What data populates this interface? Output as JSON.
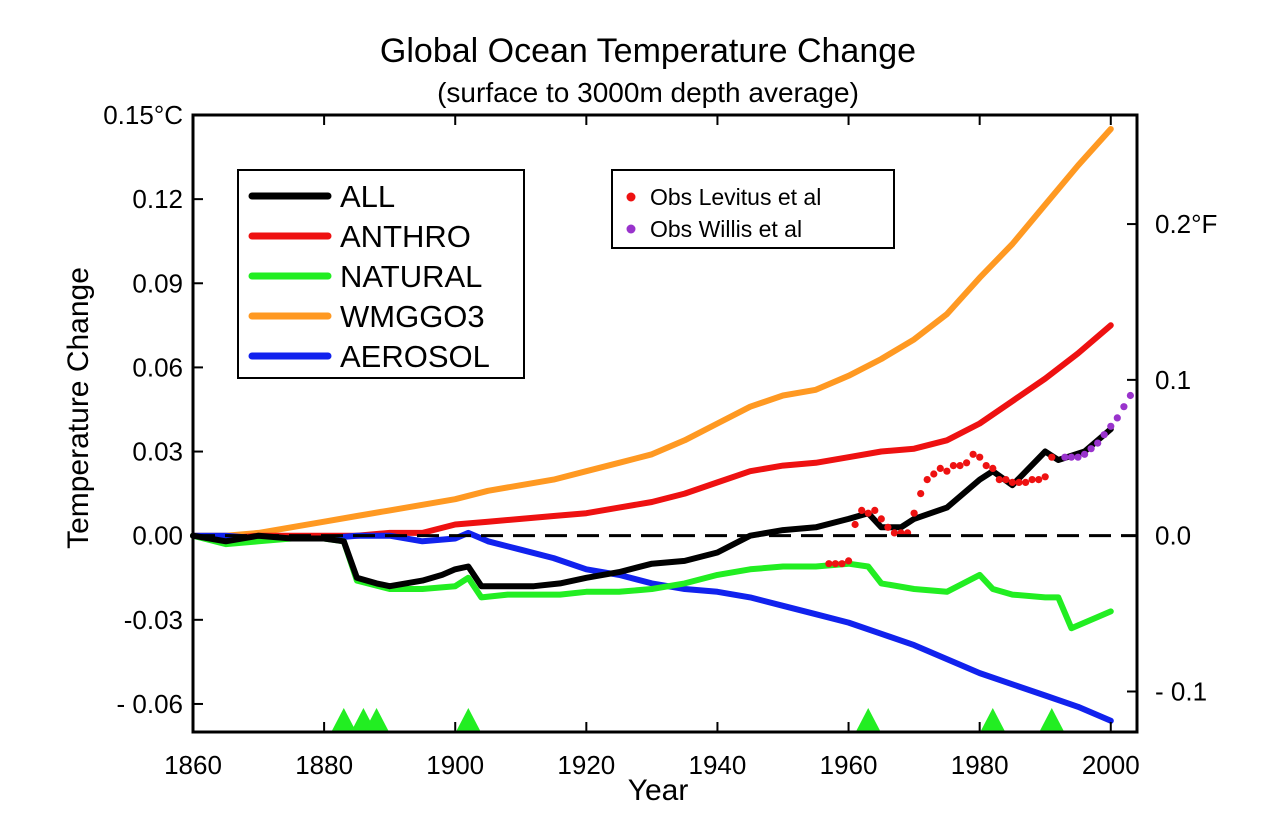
{
  "chart_data": {
    "type": "line",
    "title": "Global Ocean Temperature Change",
    "subtitle": "(surface to 3000m depth average)",
    "xlabel": "Year",
    "ylabel": "Temperature Change",
    "xlim": [
      1860,
      2004
    ],
    "ylim": [
      -0.07,
      0.15
    ],
    "x_ticks": [
      "1860",
      "1880",
      "1900",
      "1920",
      "1940",
      "1960",
      "1980",
      "2000"
    ],
    "y_ticks": [
      {
        "value": 0.15,
        "label": "0.15°C"
      },
      {
        "value": 0.12,
        "label": "0.12"
      },
      {
        "value": 0.09,
        "label": "0.09"
      },
      {
        "value": 0.06,
        "label": "0.06"
      },
      {
        "value": 0.03,
        "label": "0.03"
      },
      {
        "value": 0.0,
        "label": "0.00"
      },
      {
        "value": -0.03,
        "label": "-0.03"
      },
      {
        "value": -0.06,
        "label": "- 0.06"
      }
    ],
    "y2_ticks": [
      {
        "value": 0.2,
        "label": "0.2°F"
      },
      {
        "value": 0.1,
        "label": "0.1"
      },
      {
        "value": 0.0,
        "label": "0.0"
      },
      {
        "value": -0.1,
        "label": "- 0.1"
      }
    ],
    "grid": false,
    "series": [
      {
        "name": "ALL",
        "color": "#000000",
        "x": [
          1860,
          1865,
          1870,
          1875,
          1880,
          1883,
          1885,
          1888,
          1890,
          1895,
          1898,
          1900,
          1902,
          1904,
          1908,
          1912,
          1916,
          1920,
          1925,
          1930,
          1935,
          1940,
          1945,
          1950,
          1955,
          1960,
          1963,
          1965,
          1968,
          1970,
          1975,
          1980,
          1982,
          1985,
          1990,
          1992,
          1996,
          2000
        ],
        "y": [
          0.0,
          -0.002,
          0.0,
          -0.001,
          -0.001,
          -0.002,
          -0.015,
          -0.017,
          -0.018,
          -0.016,
          -0.014,
          -0.012,
          -0.011,
          -0.018,
          -0.018,
          -0.018,
          -0.017,
          -0.015,
          -0.013,
          -0.01,
          -0.009,
          -0.006,
          0.0,
          0.002,
          0.003,
          0.006,
          0.008,
          0.003,
          0.003,
          0.006,
          0.01,
          0.02,
          0.023,
          0.018,
          0.03,
          0.027,
          0.03,
          0.038
        ]
      },
      {
        "name": "ANTHRO",
        "color": "#ee1111",
        "x": [
          1860,
          1865,
          1870,
          1875,
          1880,
          1885,
          1890,
          1895,
          1900,
          1905,
          1910,
          1915,
          1920,
          1925,
          1930,
          1935,
          1940,
          1945,
          1950,
          1955,
          1960,
          1965,
          1970,
          1975,
          1980,
          1985,
          1990,
          1995,
          2000
        ],
        "y": [
          0.0,
          -0.001,
          0.0,
          0.0,
          0.0,
          0.0,
          0.001,
          0.001,
          0.004,
          0.005,
          0.006,
          0.007,
          0.008,
          0.01,
          0.012,
          0.015,
          0.019,
          0.023,
          0.025,
          0.026,
          0.028,
          0.03,
          0.031,
          0.034,
          0.04,
          0.048,
          0.056,
          0.065,
          0.075
        ]
      },
      {
        "name": "NATURAL",
        "color": "#22ee22",
        "x": [
          1860,
          1865,
          1870,
          1875,
          1880,
          1883,
          1885,
          1890,
          1895,
          1900,
          1902,
          1904,
          1908,
          1912,
          1916,
          1920,
          1925,
          1930,
          1935,
          1940,
          1945,
          1950,
          1955,
          1960,
          1963,
          1965,
          1970,
          1975,
          1980,
          1982,
          1985,
          1990,
          1992,
          1994,
          1998,
          2000
        ],
        "y": [
          0.0,
          -0.003,
          -0.002,
          -0.001,
          -0.001,
          -0.002,
          -0.016,
          -0.019,
          -0.019,
          -0.018,
          -0.015,
          -0.022,
          -0.021,
          -0.021,
          -0.021,
          -0.02,
          -0.02,
          -0.019,
          -0.017,
          -0.014,
          -0.012,
          -0.011,
          -0.011,
          -0.01,
          -0.011,
          -0.017,
          -0.019,
          -0.02,
          -0.014,
          -0.019,
          -0.021,
          -0.022,
          -0.022,
          -0.033,
          -0.029,
          -0.027
        ]
      },
      {
        "name": "WMGGO3",
        "color": "#ff9922",
        "x": [
          1860,
          1865,
          1870,
          1875,
          1880,
          1885,
          1890,
          1895,
          1900,
          1905,
          1910,
          1915,
          1920,
          1925,
          1930,
          1935,
          1940,
          1945,
          1950,
          1955,
          1960,
          1965,
          1970,
          1975,
          1980,
          1985,
          1990,
          1995,
          2000
        ],
        "y": [
          0.0,
          0.0,
          0.001,
          0.003,
          0.005,
          0.007,
          0.009,
          0.011,
          0.013,
          0.016,
          0.018,
          0.02,
          0.023,
          0.026,
          0.029,
          0.034,
          0.04,
          0.046,
          0.05,
          0.052,
          0.057,
          0.063,
          0.07,
          0.079,
          0.092,
          0.104,
          0.118,
          0.132,
          0.145
        ]
      },
      {
        "name": "AEROSOL",
        "color": "#1122ee",
        "x": [
          1860,
          1865,
          1870,
          1875,
          1880,
          1885,
          1890,
          1895,
          1900,
          1902,
          1905,
          1910,
          1915,
          1920,
          1925,
          1930,
          1935,
          1940,
          1945,
          1950,
          1955,
          1960,
          1965,
          1970,
          1975,
          1980,
          1985,
          1990,
          1995,
          2000
        ],
        "y": [
          0.0,
          0.0,
          -0.001,
          -0.001,
          -0.001,
          0.0,
          0.0,
          -0.002,
          -0.001,
          0.001,
          -0.002,
          -0.005,
          -0.008,
          -0.012,
          -0.014,
          -0.017,
          -0.019,
          -0.02,
          -0.022,
          -0.025,
          -0.028,
          -0.031,
          -0.035,
          -0.039,
          -0.044,
          -0.049,
          -0.053,
          -0.057,
          -0.061,
          -0.066
        ]
      }
    ],
    "observations": [
      {
        "name": "Obs Levitus et al",
        "color": "#ee1111",
        "x": [
          1957,
          1958,
          1959,
          1960,
          1961,
          1962,
          1963,
          1964,
          1965,
          1966,
          1967,
          1968,
          1969,
          1970,
          1971,
          1972,
          1973,
          1974,
          1975,
          1976,
          1977,
          1978,
          1979,
          1980,
          1981,
          1982,
          1983,
          1984,
          1985,
          1986,
          1987,
          1988,
          1989,
          1990,
          1991
        ],
        "y": [
          -0.01,
          -0.01,
          -0.01,
          -0.009,
          0.004,
          0.009,
          0.008,
          0.009,
          0.006,
          0.003,
          0.001,
          0.001,
          0.001,
          0.008,
          0.015,
          0.02,
          0.022,
          0.024,
          0.023,
          0.025,
          0.025,
          0.026,
          0.029,
          0.028,
          0.025,
          0.024,
          0.02,
          0.02,
          0.019,
          0.019,
          0.019,
          0.02,
          0.02,
          0.021,
          0.028
        ]
      },
      {
        "name": "Obs Willis et al",
        "color": "#9933cc",
        "x": [
          1993,
          1994,
          1995,
          1996,
          1997,
          1998,
          1999,
          2000,
          2001,
          2002,
          2003
        ],
        "y": [
          0.028,
          0.028,
          0.028,
          0.029,
          0.031,
          0.033,
          0.036,
          0.039,
          0.042,
          0.046,
          0.05
        ]
      }
    ],
    "volcano_markers": [
      1883,
      1886,
      1888,
      1902,
      1963,
      1982,
      1991
    ],
    "volcano_color": "#22ee22",
    "zero_line": "dashed",
    "legend_lines_position": "top-left",
    "legend_obs_position": "top-center"
  }
}
